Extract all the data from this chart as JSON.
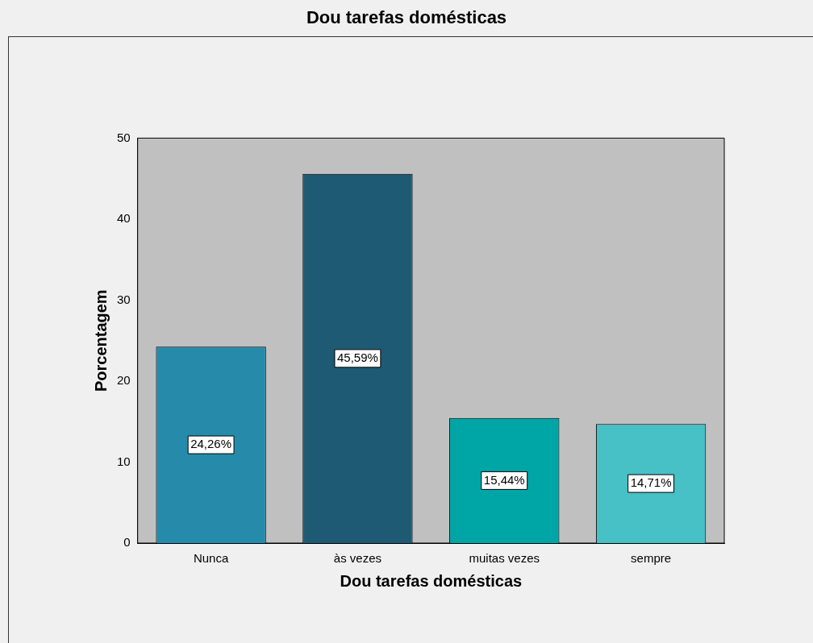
{
  "chart_data": {
    "type": "bar",
    "title": "Dou tarefas domésticas",
    "xlabel": "Dou tarefas domésticas",
    "ylabel": "Porcentagem",
    "categories": [
      "Nunca",
      "às vezes",
      "muitas vezes",
      "sempre"
    ],
    "values": [
      24.26,
      45.59,
      15.44,
      14.71
    ],
    "colors": [
      "#268bab",
      "#1e5a73",
      "#00a6a6",
      "#47c0c6"
    ],
    "value_labels": [
      "24,26%",
      "45,59%",
      "15,44%",
      "14,71%"
    ],
    "ylim": [
      0,
      50
    ],
    "yticks": [
      0,
      10,
      20,
      30,
      40,
      50
    ],
    "grid": false,
    "legend": false
  }
}
